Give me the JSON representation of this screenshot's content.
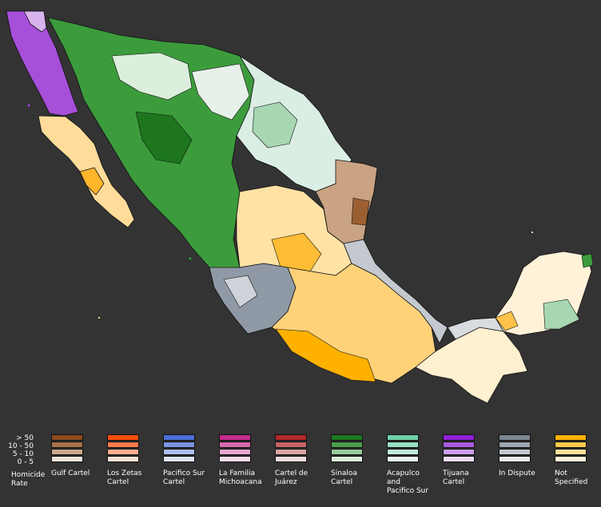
{
  "map": {
    "background": "#333333",
    "regions": [
      {
        "cartel": "tijuana",
        "color": "#9b3ad6"
      },
      {
        "cartel": "not_specified",
        "color": "#ffdb9a"
      },
      {
        "cartel": "sinaloa",
        "color": "#3a9b3a"
      },
      {
        "cartel": "in_dispute",
        "color": "#8f98a4"
      },
      {
        "cartel": "gulf",
        "color": "#b08866"
      },
      {
        "cartel": "acapulco",
        "color": "#bde8cc"
      }
    ]
  },
  "legend": {
    "rate_levels": [
      "> 50",
      "10 - 50",
      "5 - 10",
      "0 - 5"
    ],
    "rate_title": "Homicide\nRate",
    "cartels": [
      {
        "id": "gulf",
        "name": "Gulf Cartel",
        "colors": [
          "#8b4a1e",
          "#a8714b",
          "#cba88c",
          "#ede3da"
        ]
      },
      {
        "id": "zetas",
        "name": "Los Zetas\nCartel",
        "colors": [
          "#ff4d0d",
          "#ff7a4a",
          "#ffae8f",
          "#ffe2d6"
        ]
      },
      {
        "id": "pacifico_sur",
        "name": "Pacifico Sur\nCartel",
        "colors": [
          "#4b6fd9",
          "#7a94e3",
          "#aebeef",
          "#dde4f8"
        ]
      },
      {
        "id": "familia",
        "name": "La Familia\nMichoacana",
        "colors": [
          "#c42c8c",
          "#d66aad",
          "#e7a6cf",
          "#f6dcec"
        ]
      },
      {
        "id": "juarez",
        "name": "Cartel de\nJuárez",
        "colors": [
          "#b02a2a",
          "#c76464",
          "#dda4a4",
          "#f2dcdc"
        ]
      },
      {
        "id": "sinaloa",
        "name": "Sinaloa\nCartel",
        "colors": [
          "#1e7a1e",
          "#4a9e4a",
          "#98ca98",
          "#dcefdc"
        ]
      },
      {
        "id": "acapulco",
        "name": "Acapulco\nand\nPacifico Sur",
        "colors": [
          "#6ed1a9",
          "#96dfc1",
          "#c0ecd9",
          "#e8f8f1"
        ]
      },
      {
        "id": "tijuana",
        "name": "Tijuana\nCartel",
        "colors": [
          "#8f1fd6",
          "#ab5ae1",
          "#cc9dee",
          "#ecdcf8"
        ]
      },
      {
        "id": "in_dispute",
        "name": "In Dispute",
        "colors": [
          "#7b8592",
          "#9ea6b0",
          "#c4c9cf",
          "#e8eaec"
        ]
      },
      {
        "id": "not_specified",
        "name": "Not\nSpecified",
        "colors": [
          "#ffb300",
          "#ffc94d",
          "#ffe09a",
          "#fff3d9"
        ]
      }
    ]
  }
}
